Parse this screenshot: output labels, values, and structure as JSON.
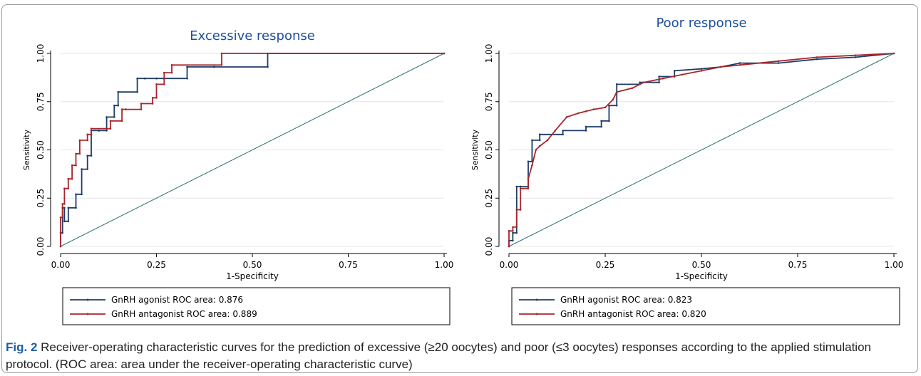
{
  "colors": {
    "agonist": "#1f3d66",
    "antagonist": "#a8262d",
    "reference": "#2e6e74",
    "title": "#1e4f9c",
    "axis": "#000000",
    "grid": "#e6e6e6",
    "caption_label": "#1a5fa0"
  },
  "caption": {
    "label": "Fig. 2",
    "text": " Receiver-operating characteristic curves for the prediction of excessive (≥20 oocytes) and poor (≤3 oocytes) responses according to the applied stimulation protocol. (ROC area: area under the receiver-operating characteristic curve)"
  },
  "chart_data": [
    {
      "type": "line",
      "title": "Excessive response",
      "xlabel": "1-Specificity",
      "ylabel": "Sensitivity",
      "xlim": [
        0,
        1
      ],
      "ylim": [
        0,
        1
      ],
      "xticks": [
        "0.00",
        "0.25",
        "0.50",
        "0.75",
        "1.00"
      ],
      "yticks": [
        "0.00",
        "0.25",
        "0.50",
        "0.75",
        "1.00"
      ],
      "grid": true,
      "legend_position": "bottom",
      "series": [
        {
          "name": "GnRH agonist ROC area: 0.876",
          "key": "agonist",
          "x": [
            0,
            0,
            0.005,
            0.005,
            0.01,
            0.01,
            0.02,
            0.02,
            0.04,
            0.04,
            0.055,
            0.055,
            0.07,
            0.07,
            0.08,
            0.08,
            0.1,
            0.1,
            0.12,
            0.12,
            0.14,
            0.14,
            0.15,
            0.15,
            0.2,
            0.2,
            0.22,
            0.22,
            0.25,
            0.25,
            0.27,
            0.27,
            0.33,
            0.33,
            0.4,
            0.4,
            0.54,
            0.54,
            1.0
          ],
          "y": [
            0,
            0.07,
            0.07,
            0.2,
            0.2,
            0.13,
            0.13,
            0.2,
            0.2,
            0.27,
            0.27,
            0.4,
            0.4,
            0.47,
            0.47,
            0.6,
            0.6,
            0.6,
            0.6,
            0.67,
            0.67,
            0.73,
            0.73,
            0.8,
            0.8,
            0.87,
            0.87,
            0.87,
            0.87,
            0.87,
            0.87,
            0.87,
            0.87,
            0.93,
            0.93,
            0.93,
            0.93,
            1.0,
            1.0
          ]
        },
        {
          "name": "GnRH antagonist ROC area: 0.889",
          "key": "antagonist",
          "x": [
            0,
            0,
            0.005,
            0.005,
            0.01,
            0.01,
            0.02,
            0.02,
            0.03,
            0.03,
            0.04,
            0.04,
            0.05,
            0.05,
            0.07,
            0.07,
            0.08,
            0.08,
            0.13,
            0.13,
            0.16,
            0.16,
            0.17,
            0.17,
            0.21,
            0.21,
            0.24,
            0.24,
            0.25,
            0.25,
            0.27,
            0.27,
            0.29,
            0.29,
            0.42,
            0.42,
            1.0
          ],
          "y": [
            0,
            0.15,
            0.15,
            0.22,
            0.22,
            0.3,
            0.3,
            0.35,
            0.35,
            0.42,
            0.42,
            0.48,
            0.48,
            0.55,
            0.55,
            0.58,
            0.58,
            0.61,
            0.61,
            0.65,
            0.65,
            0.71,
            0.71,
            0.71,
            0.71,
            0.74,
            0.74,
            0.77,
            0.77,
            0.84,
            0.84,
            0.9,
            0.9,
            0.94,
            0.94,
            1.0,
            1.0
          ]
        },
        {
          "name": "",
          "key": "reference",
          "x": [
            0,
            1
          ],
          "y": [
            0,
            1
          ]
        }
      ]
    },
    {
      "type": "line",
      "title": "Poor response",
      "xlabel": "1-Specificity",
      "ylabel": "Sensitivity",
      "xlim": [
        0,
        1
      ],
      "ylim": [
        0,
        1
      ],
      "xticks": [
        "0.00",
        "0.25",
        "0.50",
        "0.75",
        "1.00"
      ],
      "yticks": [
        "0.00",
        "0.25",
        "0.50",
        "0.75",
        "1.00"
      ],
      "grid": true,
      "legend_position": "bottom",
      "series": [
        {
          "name": "GnRH agonist ROC area: 0.823",
          "key": "agonist",
          "x": [
            0,
            0,
            0.01,
            0.01,
            0.02,
            0.02,
            0.03,
            0.03,
            0.05,
            0.05,
            0.06,
            0.06,
            0.08,
            0.08,
            0.14,
            0.14,
            0.2,
            0.2,
            0.24,
            0.24,
            0.26,
            0.26,
            0.28,
            0.28,
            0.34,
            0.34,
            0.39,
            0.39,
            0.43,
            0.43,
            0.5,
            0.55,
            0.6,
            0.7,
            0.8,
            0.9,
            1.0
          ],
          "y": [
            0,
            0.03,
            0.03,
            0.07,
            0.07,
            0.31,
            0.31,
            0.31,
            0.31,
            0.44,
            0.44,
            0.55,
            0.55,
            0.58,
            0.58,
            0.6,
            0.6,
            0.62,
            0.62,
            0.65,
            0.65,
            0.73,
            0.73,
            0.84,
            0.84,
            0.85,
            0.85,
            0.88,
            0.88,
            0.91,
            0.92,
            0.93,
            0.95,
            0.95,
            0.97,
            0.98,
            1.0
          ]
        },
        {
          "name": "GnRH antagonist ROC area: 0.820",
          "key": "antagonist",
          "x": [
            0,
            0,
            0.01,
            0.01,
            0.02,
            0.02,
            0.03,
            0.03,
            0.05,
            0.05,
            0.06,
            0.07,
            0.08,
            0.1,
            0.12,
            0.15,
            0.18,
            0.2,
            0.22,
            0.25,
            0.27,
            0.28,
            0.32,
            0.35,
            0.4,
            0.45,
            0.5,
            0.55,
            0.6,
            0.7,
            0.8,
            0.9,
            1.0
          ],
          "y": [
            0,
            0.08,
            0.08,
            0.1,
            0.1,
            0.19,
            0.19,
            0.3,
            0.3,
            0.35,
            0.42,
            0.5,
            0.52,
            0.55,
            0.6,
            0.67,
            0.69,
            0.7,
            0.71,
            0.72,
            0.76,
            0.8,
            0.82,
            0.85,
            0.87,
            0.89,
            0.91,
            0.93,
            0.94,
            0.96,
            0.98,
            0.99,
            1.0
          ]
        },
        {
          "name": "",
          "key": "reference",
          "x": [
            0,
            1
          ],
          "y": [
            0,
            1
          ]
        }
      ]
    }
  ]
}
